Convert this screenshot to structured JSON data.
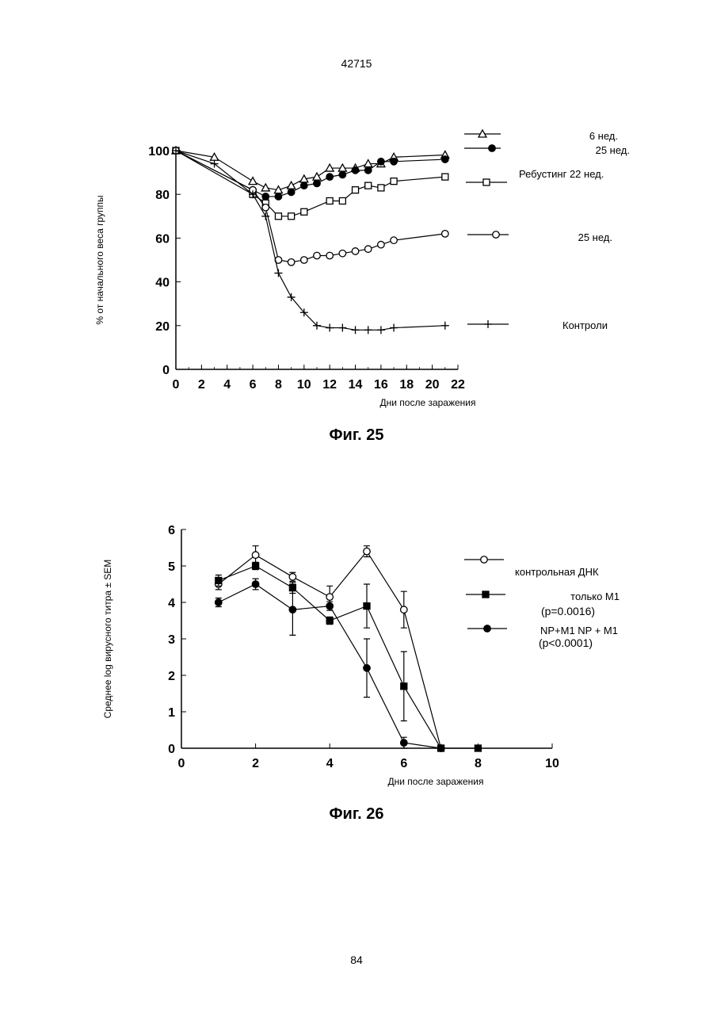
{
  "page": {
    "header": "42715",
    "footer": "84"
  },
  "figures": [
    {
      "caption": "Фиг. 25"
    },
    {
      "caption": "Фиг. 26"
    }
  ],
  "chart_data": [
    {
      "type": "line",
      "xlabel": "Дни после заражения",
      "ylabel": "% от начального веса группы",
      "xlim": [
        0,
        22
      ],
      "ylim": [
        0,
        100
      ],
      "xticks": [
        0,
        2,
        4,
        6,
        8,
        10,
        12,
        14,
        16,
        18,
        20,
        22
      ],
      "yticks": [
        0,
        20,
        40,
        60,
        80,
        100
      ],
      "grid": false,
      "legend_position": "right",
      "series": [
        {
          "name": "6 нед.",
          "marker": "triangle-open",
          "x": [
            0,
            3,
            6,
            7,
            8,
            9,
            10,
            11,
            12,
            13,
            14,
            15,
            16,
            17,
            21
          ],
          "y": [
            100,
            97,
            86,
            83,
            82,
            84,
            87,
            88,
            92,
            92,
            92,
            94,
            94,
            97,
            98
          ]
        },
        {
          "name": "25 нед.",
          "marker": "circle-filled",
          "x": [
            0,
            6,
            7,
            8,
            9,
            10,
            11,
            12,
            13,
            14,
            15,
            16,
            17,
            21
          ],
          "y": [
            100,
            82,
            79,
            79,
            81,
            84,
            85,
            88,
            89,
            91,
            91,
            95,
            95,
            96
          ]
        },
        {
          "name": "Ребустинг 22 нед.",
          "marker": "square-open",
          "x": [
            0,
            6,
            7,
            8,
            9,
            10,
            12,
            13,
            14,
            15,
            16,
            17,
            21
          ],
          "y": [
            100,
            80,
            76,
            70,
            70,
            72,
            77,
            77,
            82,
            84,
            83,
            86,
            88
          ]
        },
        {
          "name": "25 нед.",
          "marker": "circle-open",
          "x": [
            0,
            6,
            7,
            8,
            9,
            10,
            11,
            12,
            13,
            14,
            15,
            16,
            17,
            21
          ],
          "y": [
            100,
            82,
            74,
            50,
            49,
            50,
            52,
            52,
            53,
            54,
            55,
            57,
            59,
            62
          ]
        },
        {
          "name": "Контроли",
          "marker": "plus",
          "x": [
            0,
            3,
            6,
            7,
            8,
            9,
            10,
            11,
            12,
            13,
            14,
            15,
            16,
            17,
            21
          ],
          "y": [
            100,
            94,
            80,
            70,
            44,
            33,
            26,
            20,
            19,
            19,
            18,
            18,
            18,
            19,
            20
          ]
        }
      ]
    },
    {
      "type": "line",
      "xlabel": "Дни после заражения",
      "ylabel": "Среднее log вирусного титра ± SEM",
      "xlim": [
        0,
        10
      ],
      "ylim": [
        0,
        6
      ],
      "xticks": [
        0,
        2,
        4,
        6,
        8,
        10
      ],
      "yticks": [
        0,
        1,
        2,
        3,
        4,
        5,
        6
      ],
      "grid": false,
      "legend_position": "right",
      "series": [
        {
          "name": "контрольная ДНК",
          "marker": "circle-open",
          "x": [
            1,
            2,
            3,
            4,
            5,
            6,
            7
          ],
          "y": [
            4.5,
            5.3,
            4.7,
            4.15,
            5.4,
            3.8,
            0
          ],
          "err": [
            0.15,
            0.25,
            0.12,
            0.3,
            0.15,
            0.5,
            0
          ]
        },
        {
          "name": "только М1",
          "note": "(p=0.0016)",
          "marker": "square-filled",
          "x": [
            1,
            2,
            3,
            4,
            5,
            6,
            7,
            8
          ],
          "y": [
            4.6,
            5.0,
            4.4,
            3.5,
            3.9,
            1.7,
            0,
            0
          ],
          "err": [
            0.15,
            0.1,
            0.15,
            0.1,
            0.6,
            0.95,
            0,
            0
          ]
        },
        {
          "name": "NP+M1 NP + M1",
          "note": "(p<0.0001)",
          "marker": "circle-filled",
          "x": [
            1,
            2,
            3,
            4,
            5,
            6,
            7
          ],
          "y": [
            4.0,
            4.5,
            3.8,
            3.9,
            2.2,
            0.15,
            0
          ],
          "err": [
            0.12,
            0.15,
            0.7,
            0.12,
            0.8,
            0.15,
            0
          ]
        }
      ]
    }
  ]
}
